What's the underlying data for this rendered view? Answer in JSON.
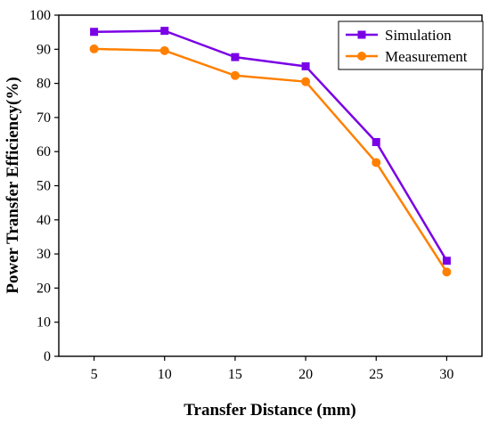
{
  "chart_data": {
    "type": "line",
    "title": "",
    "xlabel": "Transfer Distance (mm)",
    "ylabel": "Power Transfer Efficiency(%)",
    "x": [
      5,
      10,
      15,
      20,
      25,
      30
    ],
    "xlim": [
      2.5,
      32.5
    ],
    "ylim": [
      0,
      100
    ],
    "xticks": [
      5,
      10,
      15,
      20,
      25,
      30
    ],
    "yticks": [
      0,
      10,
      20,
      30,
      40,
      50,
      60,
      70,
      80,
      90,
      100
    ],
    "grid": false,
    "legend_position": "top-right",
    "series": [
      {
        "name": "Simulation",
        "values": [
          95.1,
          95.4,
          87.7,
          85.0,
          62.8,
          28.0
        ],
        "color": "#7a00e6",
        "marker": "square"
      },
      {
        "name": "Measurement",
        "values": [
          90.1,
          89.6,
          82.3,
          80.5,
          56.8,
          24.7
        ],
        "color": "#ff8000",
        "marker": "circle"
      }
    ]
  }
}
